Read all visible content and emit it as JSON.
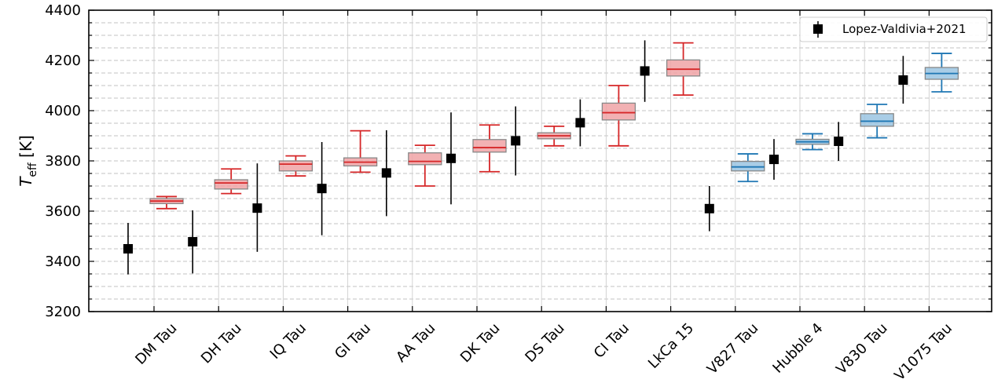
{
  "chart_data": {
    "type": "box",
    "ylabel": {
      "main": "T",
      "sub": "eff",
      "unit": " [K]"
    },
    "ylim": [
      3200,
      4400
    ],
    "yticks": [
      3200,
      3400,
      3600,
      3800,
      4000,
      4200,
      4400
    ],
    "categories": [
      "DM Tau",
      "DH Tau",
      "IQ Tau",
      "GI Tau",
      "AA Tau",
      "DK Tau",
      "DS Tau",
      "CI Tau",
      "LkCa 15",
      "V827 Tau",
      "Hubble 4",
      "V830 Tau",
      "V1075 Tau"
    ],
    "grid": {
      "horizontal_dashed": true,
      "vertical_at_categories": true
    },
    "legend": {
      "position": "top-right",
      "label": "Lopez-Valdivia+2021"
    },
    "colors": {
      "red": "#d62728",
      "red_fill": "#f0a3a6",
      "blue": "#1f77b4",
      "blue_fill": "#9ac4e2",
      "reference": "#000000"
    },
    "reference_series": {
      "name": "Lopez-Valdivia+2021",
      "values": [
        3450,
        3478,
        3612,
        3690,
        3752,
        3810,
        3880,
        3952,
        4158,
        3610,
        3806,
        3878,
        4122
      ],
      "err_low": [
        3348,
        3352,
        3438,
        3504,
        3580,
        3627,
        3742,
        3858,
        4035,
        3520,
        3725,
        3800,
        4028
      ],
      "err_high": [
        3553,
        3603,
        3790,
        3875,
        3922,
        3993,
        4017,
        4045,
        4280,
        3700,
        3887,
        3955,
        4218
      ]
    },
    "boxes": [
      {
        "whislo": 3610,
        "q1": 3630,
        "median": 3640,
        "q3": 3650,
        "whishi": 3658,
        "color": "red"
      },
      {
        "whislo": 3670,
        "q1": 3688,
        "median": 3712,
        "q3": 3725,
        "whishi": 3768,
        "color": "red"
      },
      {
        "whislo": 3740,
        "q1": 3760,
        "median": 3787,
        "q3": 3800,
        "whishi": 3820,
        "color": "red"
      },
      {
        "whislo": 3755,
        "q1": 3780,
        "median": 3795,
        "q3": 3812,
        "whishi": 3920,
        "color": "red"
      },
      {
        "whislo": 3700,
        "q1": 3785,
        "median": 3798,
        "q3": 3832,
        "whishi": 3862,
        "color": "red"
      },
      {
        "whislo": 3757,
        "q1": 3835,
        "median": 3853,
        "q3": 3885,
        "whishi": 3943,
        "color": "red"
      },
      {
        "whislo": 3860,
        "q1": 3888,
        "median": 3900,
        "q3": 3912,
        "whishi": 3938,
        "color": "red"
      },
      {
        "whislo": 3860,
        "q1": 3963,
        "median": 3992,
        "q3": 4030,
        "whishi": 4100,
        "color": "red"
      },
      {
        "whislo": 4062,
        "q1": 4138,
        "median": 4165,
        "q3": 4202,
        "whishi": 4270,
        "color": "red"
      },
      {
        "whislo": 3718,
        "q1": 3760,
        "median": 3776,
        "q3": 3798,
        "whishi": 3828,
        "color": "blue"
      },
      {
        "whislo": 3845,
        "q1": 3866,
        "median": 3876,
        "q3": 3886,
        "whishi": 3908,
        "color": "blue"
      },
      {
        "whislo": 3892,
        "q1": 3938,
        "median": 3958,
        "q3": 3988,
        "whishi": 4025,
        "color": "blue"
      },
      {
        "whislo": 4075,
        "q1": 4125,
        "median": 4148,
        "q3": 4172,
        "whishi": 4228,
        "color": "blue"
      }
    ]
  }
}
